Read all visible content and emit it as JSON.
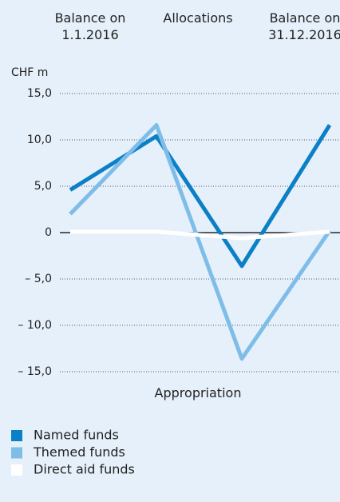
{
  "chart_data": {
    "type": "line",
    "y_label": "CHF m",
    "categories": [
      "Balance on\n1.1.2016",
      "Allocations",
      "Appropriation",
      "Balance on\n31.12.2016"
    ],
    "series": [
      {
        "name": "Named funds",
        "color": "#0b80c6",
        "values": [
          4.6,
          10.4,
          -3.6,
          11.6
        ]
      },
      {
        "name": "Themed funds",
        "color": "#7fbde9",
        "values": [
          2.0,
          11.6,
          -13.6,
          0.2
        ]
      },
      {
        "name": "Direct aid funds",
        "color": "#ffffff",
        "values": [
          0.1,
          0.1,
          -0.6,
          0.1
        ]
      }
    ],
    "ylim": [
      -15,
      15
    ],
    "yticks": [
      {
        "value": 15,
        "label": "15,0"
      },
      {
        "value": 10,
        "label": "10,0"
      },
      {
        "value": 5,
        "label": "5,0"
      },
      0,
      {
        "value": -5,
        "label": "– 5,0"
      },
      {
        "value": -10,
        "label": "– 10,0"
      },
      {
        "value": -15,
        "label": "– 15,0"
      }
    ],
    "grid": true
  }
}
